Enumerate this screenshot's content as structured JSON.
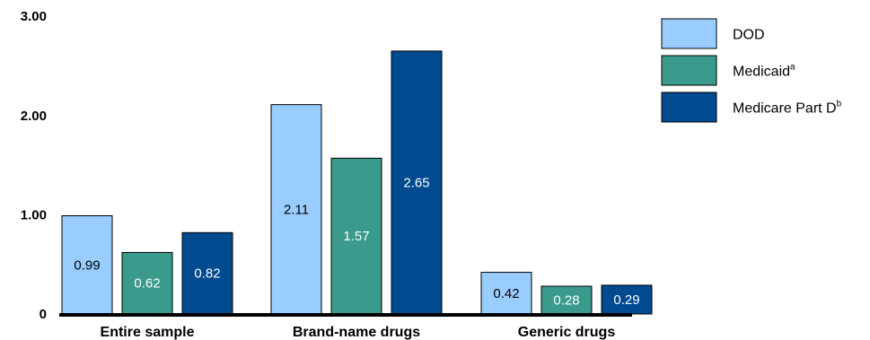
{
  "chart_data": {
    "type": "bar",
    "categories": [
      "Entire sample",
      "Brand-name drugs",
      "Generic drugs"
    ],
    "y_ticks": [
      "0",
      "1.00",
      "2.00",
      "3.00"
    ],
    "ylim": [
      0,
      3
    ],
    "grid": false,
    "legend_position": "top-right",
    "series": [
      {
        "name": "DOD",
        "name_sup": "",
        "color": "#99ccff",
        "label_color": "#000000",
        "values": [
          0.99,
          2.11,
          0.42
        ],
        "labels": [
          "0.99",
          "2.11",
          "0.42"
        ]
      },
      {
        "name": "Medicaid",
        "name_sup": "a",
        "color": "#3a9a8c",
        "label_color": "#ffffff",
        "values": [
          0.62,
          1.57,
          0.28
        ],
        "labels": [
          "0.62",
          "1.57",
          "0.28"
        ]
      },
      {
        "name": "Medicare Part D",
        "name_sup": "b",
        "color": "#004a8f",
        "label_color": "#ffffff",
        "values": [
          0.82,
          2.65,
          0.29
        ],
        "labels": [
          "0.82",
          "2.65",
          "0.29"
        ]
      }
    ]
  }
}
